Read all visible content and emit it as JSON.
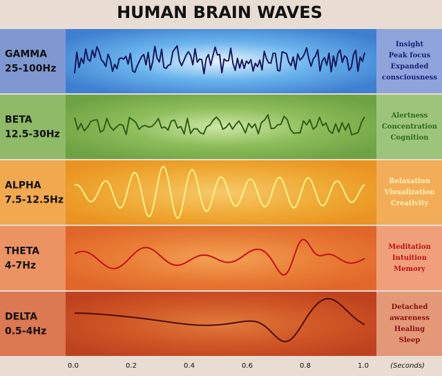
{
  "title": "HUMAN BRAIN WAVES",
  "bands": [
    {
      "name": "GAMMA",
      "range": "25-100Hz",
      "effects": [
        "Insight",
        "Peak focus",
        "Expanded",
        "consciousness"
      ]
    },
    {
      "name": "BETA",
      "range": "12.5-30Hz",
      "effects": [
        "Alertness",
        "Concentration",
        "Cognition"
      ]
    },
    {
      "name": "ALPHA",
      "range": "7.5-12.5Hz",
      "effects": [
        "Relaxation",
        "Visualization",
        "Creativity"
      ]
    },
    {
      "name": "THETA",
      "range": "4-7Hz",
      "effects": [
        "Meditation",
        "Intuition",
        "Memory"
      ]
    },
    {
      "name": "DELTA",
      "range": "0.5-4Hz",
      "effects": [
        "Detached",
        "awareness",
        "Healing",
        "Sleep"
      ]
    }
  ],
  "axis": {
    "ticks": [
      "0.0",
      "0.2",
      "0.4",
      "0.6",
      "0.8",
      "1.0"
    ],
    "unit": "(Seconds)"
  }
}
